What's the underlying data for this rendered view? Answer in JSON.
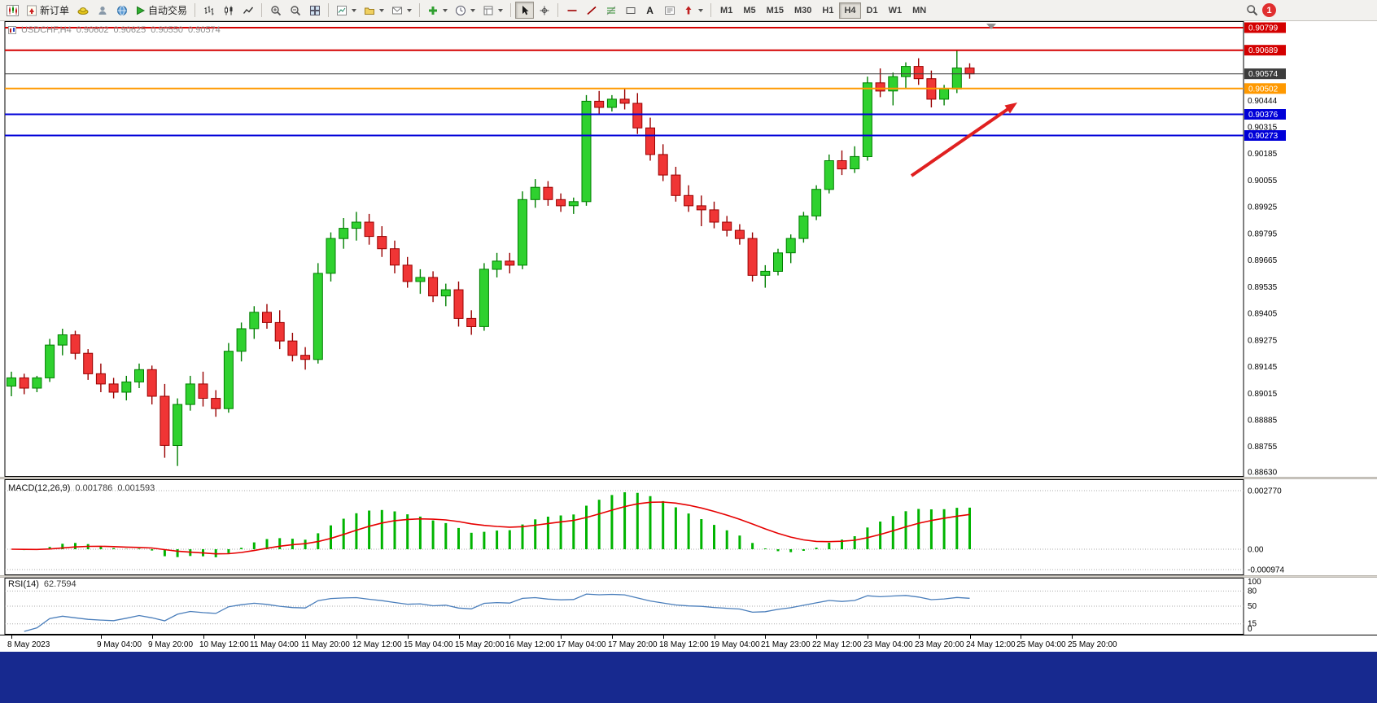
{
  "toolbar": {
    "new_order_label": "新订单",
    "auto_trading_label": "自动交易",
    "text_tool_label": "A",
    "timeframes": [
      "M1",
      "M5",
      "M15",
      "M30",
      "H1",
      "H4",
      "D1",
      "W1",
      "MN"
    ],
    "active_timeframe": "H4",
    "notification_count": "1"
  },
  "chart_header": {
    "symbol_period": "USDCHF,H4",
    "open": "0.90602",
    "high": "0.90625",
    "low": "0.90550",
    "close": "0.90574"
  },
  "macd_panel": {
    "label": "MACD(12,26,9)",
    "value_main": "0.001786",
    "value_signal": "0.001593"
  },
  "rsi_panel": {
    "label": "RSI(14)",
    "value": "62.7594"
  },
  "colors": {
    "bull": "#2fd12f",
    "bull_border": "#007f00",
    "bear": "#f03535",
    "bear_border": "#990000",
    "macd_hist": "#00b400",
    "macd_signal": "#e60000",
    "rsi_line": "#4a7ebb",
    "resistance_line": "#d40000",
    "orange_line": "#ff9900",
    "support_line": "#0000d8",
    "bid_line": "#3c3c3c",
    "arrow": "#e02020",
    "footer_bg": "#17298f"
  },
  "chart_data": {
    "type": "candlestick",
    "symbol": "USDCHF",
    "timeframe": "H4",
    "price_range": [
      0.88615,
      0.90815
    ],
    "price_axis_labels": [
      "0.90444",
      "0.90315",
      "0.90185",
      "0.90055",
      "0.89925",
      "0.89795",
      "0.89665",
      "0.89535",
      "0.89405",
      "0.89275",
      "0.89145",
      "0.89015",
      "0.88885",
      "0.88755",
      "0.88630"
    ],
    "time_labels": [
      "8 May 2023",
      "9 May 04:00",
      "9 May 20:00",
      "10 May 12:00",
      "11 May 04:00",
      "11 May 20:00",
      "12 May 12:00",
      "15 May 04:00",
      "15 May 20:00",
      "16 May 12:00",
      "17 May 04:00",
      "17 May 20:00",
      "18 May 12:00",
      "19 May 04:00",
      "21 May 23:00",
      "22 May 12:00",
      "23 May 04:00",
      "23 May 20:00",
      "24 May 12:00",
      "25 May 04:00",
      "25 May 20:00"
    ],
    "ohlc": [
      [
        0.8905,
        0.8912,
        0.89,
        0.8909
      ],
      [
        0.8909,
        0.8911,
        0.8901,
        0.8904
      ],
      [
        0.8904,
        0.891,
        0.8902,
        0.8909
      ],
      [
        0.8909,
        0.8928,
        0.8907,
        0.8925
      ],
      [
        0.8925,
        0.8933,
        0.892,
        0.893
      ],
      [
        0.893,
        0.8932,
        0.8918,
        0.8921
      ],
      [
        0.8921,
        0.8923,
        0.8908,
        0.8911
      ],
      [
        0.8911,
        0.8916,
        0.8902,
        0.8906
      ],
      [
        0.8906,
        0.8909,
        0.8899,
        0.8902
      ],
      [
        0.8902,
        0.891,
        0.8898,
        0.8907
      ],
      [
        0.8907,
        0.8916,
        0.8904,
        0.8913
      ],
      [
        0.8913,
        0.8915,
        0.8896,
        0.89
      ],
      [
        0.89,
        0.8906,
        0.887,
        0.8876
      ],
      [
        0.8876,
        0.8899,
        0.8866,
        0.8896
      ],
      [
        0.8896,
        0.891,
        0.8893,
        0.8906
      ],
      [
        0.8906,
        0.8912,
        0.8895,
        0.8899
      ],
      [
        0.8899,
        0.8903,
        0.889,
        0.8894
      ],
      [
        0.8894,
        0.8926,
        0.8892,
        0.8922
      ],
      [
        0.8922,
        0.8936,
        0.8917,
        0.8933
      ],
      [
        0.8933,
        0.8944,
        0.8928,
        0.8941
      ],
      [
        0.8941,
        0.8945,
        0.8933,
        0.8936
      ],
      [
        0.8936,
        0.8942,
        0.8923,
        0.8927
      ],
      [
        0.8927,
        0.8931,
        0.8917,
        0.892
      ],
      [
        0.892,
        0.8924,
        0.8913,
        0.8918
      ],
      [
        0.8918,
        0.8965,
        0.8916,
        0.896
      ],
      [
        0.896,
        0.898,
        0.8956,
        0.8977
      ],
      [
        0.8977,
        0.8987,
        0.8972,
        0.8982
      ],
      [
        0.8982,
        0.899,
        0.8976,
        0.8985
      ],
      [
        0.8985,
        0.8989,
        0.8974,
        0.8978
      ],
      [
        0.8978,
        0.8983,
        0.8968,
        0.8972
      ],
      [
        0.8972,
        0.8976,
        0.896,
        0.8964
      ],
      [
        0.8964,
        0.8968,
        0.8953,
        0.8956
      ],
      [
        0.8956,
        0.8962,
        0.895,
        0.8958
      ],
      [
        0.8958,
        0.8961,
        0.8946,
        0.8949
      ],
      [
        0.8949,
        0.8955,
        0.8944,
        0.8952
      ],
      [
        0.8952,
        0.8956,
        0.8934,
        0.8938
      ],
      [
        0.8938,
        0.8942,
        0.893,
        0.8934
      ],
      [
        0.8934,
        0.8965,
        0.8932,
        0.8962
      ],
      [
        0.8962,
        0.897,
        0.8958,
        0.8966
      ],
      [
        0.8966,
        0.897,
        0.896,
        0.8964
      ],
      [
        0.8964,
        0.9,
        0.8962,
        0.8996
      ],
      [
        0.8996,
        0.9006,
        0.8992,
        0.9002
      ],
      [
        0.9002,
        0.9005,
        0.8993,
        0.8996
      ],
      [
        0.8996,
        0.8999,
        0.899,
        0.8993
      ],
      [
        0.8993,
        0.8997,
        0.8989,
        0.8995
      ],
      [
        0.8995,
        0.9047,
        0.8993,
        0.9044
      ],
      [
        0.9044,
        0.9049,
        0.9038,
        0.9041
      ],
      [
        0.9041,
        0.9047,
        0.9039,
        0.9045
      ],
      [
        0.9045,
        0.905,
        0.904,
        0.9043
      ],
      [
        0.9043,
        0.9048,
        0.9028,
        0.9031
      ],
      [
        0.9031,
        0.9036,
        0.9015,
        0.9018
      ],
      [
        0.9018,
        0.9023,
        0.9005,
        0.9008
      ],
      [
        0.9008,
        0.9012,
        0.8995,
        0.8998
      ],
      [
        0.8998,
        0.9003,
        0.899,
        0.8993
      ],
      [
        0.8993,
        0.8998,
        0.8983,
        0.8991
      ],
      [
        0.8991,
        0.8995,
        0.8982,
        0.8985
      ],
      [
        0.8985,
        0.8988,
        0.8978,
        0.8981
      ],
      [
        0.8981,
        0.8984,
        0.8974,
        0.8977
      ],
      [
        0.8977,
        0.898,
        0.8956,
        0.8959
      ],
      [
        0.8959,
        0.8964,
        0.8953,
        0.8961
      ],
      [
        0.8961,
        0.8972,
        0.8959,
        0.897
      ],
      [
        0.897,
        0.8979,
        0.8965,
        0.8977
      ],
      [
        0.8977,
        0.899,
        0.8975,
        0.8988
      ],
      [
        0.8988,
        0.9003,
        0.8986,
        0.9001
      ],
      [
        0.9001,
        0.9018,
        0.8999,
        0.9015
      ],
      [
        0.9015,
        0.902,
        0.9008,
        0.9011
      ],
      [
        0.9011,
        0.9022,
        0.9009,
        0.9017
      ],
      [
        0.9017,
        0.9056,
        0.9015,
        0.9053
      ],
      [
        0.9053,
        0.906,
        0.9046,
        0.9049
      ],
      [
        0.9049,
        0.9058,
        0.9042,
        0.9056
      ],
      [
        0.9056,
        0.9063,
        0.905,
        0.9061
      ],
      [
        0.9061,
        0.9065,
        0.9052,
        0.9055
      ],
      [
        0.9055,
        0.9059,
        0.9041,
        0.9045
      ],
      [
        0.9045,
        0.9052,
        0.9042,
        0.905
      ],
      [
        0.905,
        0.9069,
        0.9048,
        0.90602
      ],
      [
        0.90602,
        0.90625,
        0.9055,
        0.90574
      ]
    ],
    "hlines": [
      {
        "price": 0.90799,
        "type": "resistance",
        "color": "#d40000",
        "width": 2,
        "tag": "0.90799"
      },
      {
        "price": 0.90689,
        "type": "resistance",
        "color": "#d40000",
        "width": 2,
        "tag": "0.90689"
      },
      {
        "price": 0.90574,
        "type": "bid",
        "color": "#3c3c3c",
        "width": 1,
        "tag": "0.90574"
      },
      {
        "price": 0.90502,
        "type": "level",
        "color": "#ff9900",
        "width": 2,
        "tag": "0.90502"
      },
      {
        "price": 0.90376,
        "type": "support",
        "color": "#0000d8",
        "width": 2,
        "tag": "0.90376"
      },
      {
        "price": 0.90273,
        "type": "support",
        "color": "#0000d8",
        "width": 2,
        "tag": "0.90273"
      }
    ],
    "macd": {
      "params": [
        12,
        26,
        9
      ],
      "axis_labels": [
        "0.002770",
        "0.00",
        "-0.000974"
      ],
      "current_main": 0.001786,
      "current_signal": 0.001593
    },
    "rsi": {
      "period": 14,
      "levels": [
        80,
        50,
        15
      ],
      "axis_labels": [
        "100",
        "80",
        "50",
        "15",
        "0"
      ],
      "current": 62.7594
    },
    "annotations": [
      {
        "type": "arrow",
        "color": "#e02020",
        "note": "red bullish arrow pointing up toward the 0.90376 blue level"
      }
    ]
  }
}
